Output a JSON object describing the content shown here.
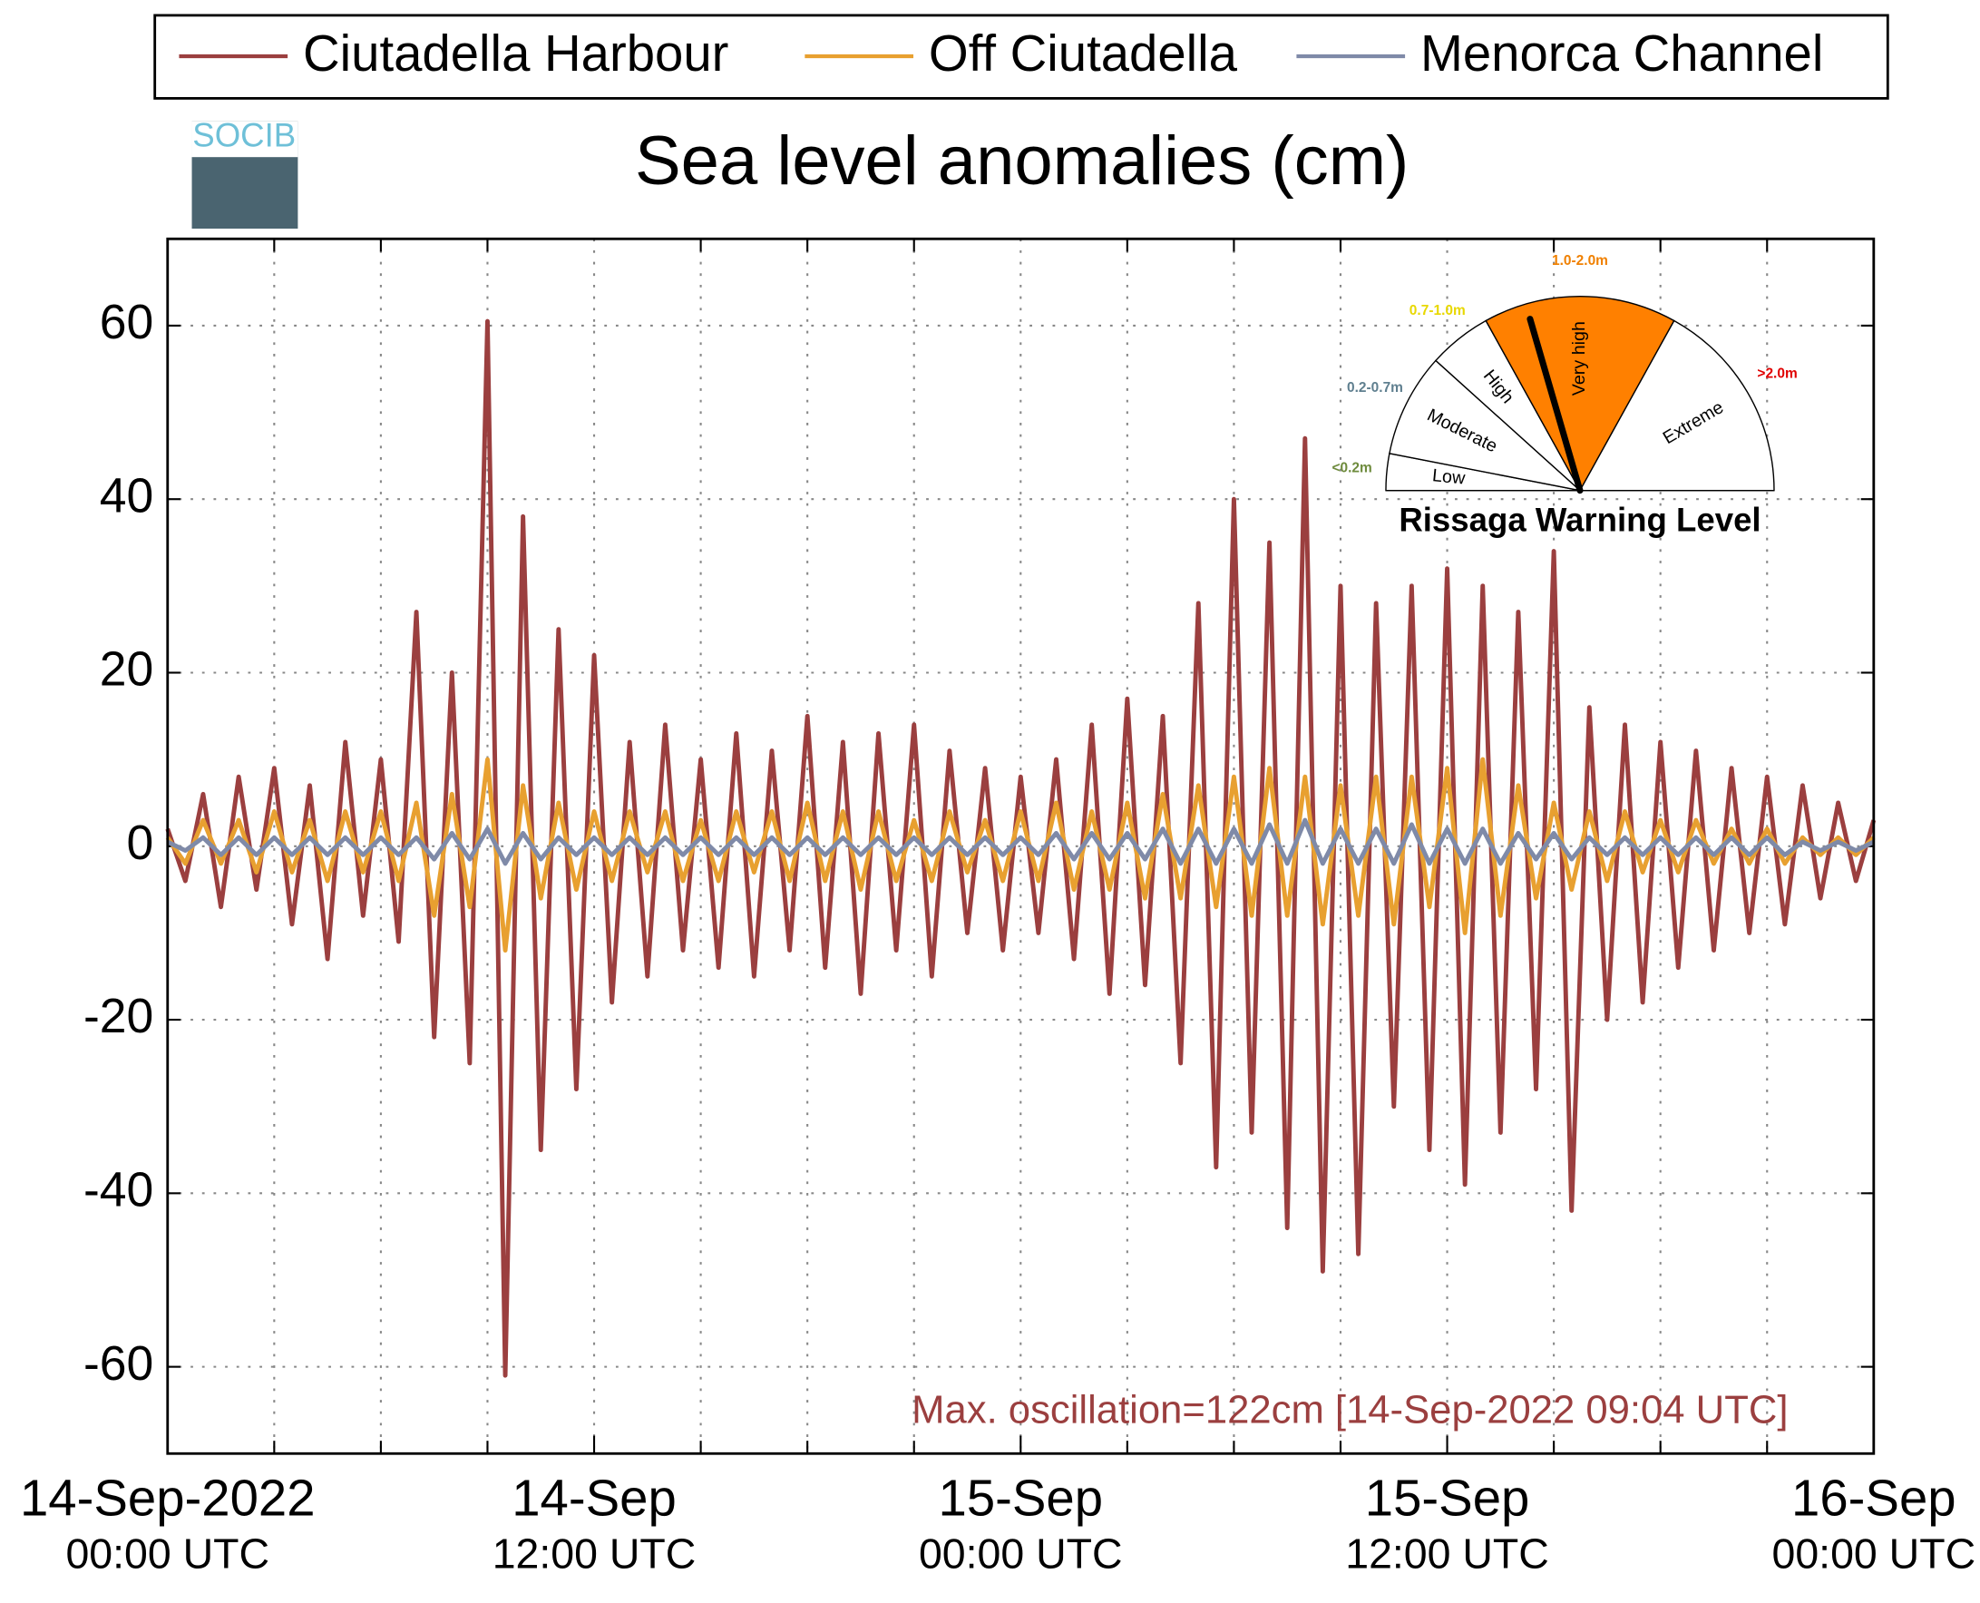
{
  "chart_data": {
    "type": "line",
    "title": "Sea level anomalies (cm)",
    "annotation": "Max. oscillation=122cm [14-Sep-2022 09:04 UTC]",
    "annotation_color": "#9b3f3f",
    "x": [
      0,
      0.5,
      1,
      1.5,
      2,
      2.5,
      3,
      3.5,
      4,
      4.5,
      5,
      5.5,
      6,
      6.5,
      7,
      7.5,
      8,
      8.5,
      9,
      9.5,
      10,
      10.5,
      11,
      11.5,
      12,
      12.5,
      13,
      13.5,
      14,
      14.5,
      15,
      15.5,
      16,
      16.5,
      17,
      17.5,
      18,
      18.5,
      19,
      19.5,
      20,
      20.5,
      21,
      21.5,
      22,
      22.5,
      23,
      23.5,
      24,
      24.5,
      25,
      25.5,
      26,
      26.5,
      27,
      27.5,
      28,
      28.5,
      29,
      29.5,
      30,
      30.5,
      31,
      31.5,
      32,
      32.5,
      33,
      33.5,
      34,
      34.5,
      35,
      35.5,
      36,
      36.5,
      37,
      37.5,
      38,
      38.5,
      39,
      39.5,
      40,
      40.5,
      41,
      41.5,
      42,
      42.5,
      43,
      43.5,
      44,
      44.5,
      45,
      45.5,
      46,
      46.5,
      47,
      47.5,
      48
    ],
    "series": [
      {
        "name": "Ciutadella Harbour",
        "color": "#9b3f3f",
        "values": [
          2,
          -4,
          6,
          -7,
          8,
          -5,
          9,
          -9,
          7,
          -13,
          12,
          -8,
          10,
          -11,
          27,
          -22,
          20,
          -25,
          60.5,
          -61,
          38,
          -35,
          25,
          -28,
          22,
          -18,
          12,
          -15,
          14,
          -12,
          10,
          -14,
          13,
          -15,
          11,
          -12,
          15,
          -14,
          12,
          -17,
          13,
          -12,
          14,
          -15,
          11,
          -10,
          9,
          -12,
          8,
          -10,
          10,
          -13,
          14,
          -17,
          17,
          -16,
          15,
          -25,
          28,
          -37,
          40,
          -33,
          35,
          -44,
          47,
          -49,
          30,
          -47,
          28,
          -30,
          30,
          -35,
          32,
          -39,
          30,
          -33,
          27,
          -28,
          34,
          -42,
          16,
          -20,
          14,
          -18,
          12,
          -14,
          11,
          -12,
          9,
          -10,
          8,
          -9,
          7,
          -6,
          5,
          -4,
          3
        ]
      },
      {
        "name": "Off Ciutadella",
        "color": "#e8a030",
        "values": [
          1,
          -2,
          3,
          -2,
          3,
          -3,
          4,
          -3,
          3,
          -4,
          4,
          -3,
          4,
          -4,
          5,
          -8,
          6,
          -7,
          10,
          -12,
          7,
          -6,
          5,
          -5,
          4,
          -4,
          4,
          -3,
          4,
          -4,
          3,
          -4,
          4,
          -3,
          4,
          -4,
          5,
          -4,
          4,
          -5,
          4,
          -4,
          3,
          -4,
          4,
          -3,
          3,
          -4,
          4,
          -4,
          5,
          -5,
          4,
          -5,
          5,
          -6,
          6,
          -6,
          7,
          -7,
          8,
          -8,
          9,
          -8,
          8,
          -9,
          7,
          -8,
          8,
          -9,
          8,
          -7,
          9,
          -10,
          10,
          -8,
          7,
          -6,
          5,
          -5,
          4,
          -4,
          4,
          -3,
          3,
          -3,
          3,
          -2,
          2,
          -2,
          2,
          -2,
          1,
          -1,
          1,
          -1,
          1
        ]
      },
      {
        "name": "Menorca Channel",
        "color": "#7f8aa8",
        "values": [
          0.5,
          -0.5,
          1,
          -1,
          1,
          -1,
          1,
          -1,
          1,
          -1,
          1,
          -1,
          1,
          -1,
          1,
          -1.5,
          1.5,
          -1.5,
          2,
          -2,
          1.5,
          -1.5,
          1,
          -1,
          1,
          -1,
          1,
          -1,
          1,
          -1,
          1,
          -1,
          1,
          -1,
          1,
          -1,
          1,
          -1,
          1,
          -1,
          1,
          -1,
          1,
          -1,
          1,
          -1,
          1,
          -1,
          1,
          -1,
          1.5,
          -1.5,
          1.5,
          -1.5,
          1.5,
          -1.5,
          2,
          -2,
          2,
          -2,
          2,
          -2,
          2.5,
          -2,
          3,
          -2,
          2,
          -2,
          2,
          -2,
          2.5,
          -2,
          2,
          -2,
          2,
          -2,
          1.5,
          -1.5,
          1.5,
          -1.5,
          1,
          -1,
          1,
          -1,
          1,
          -1,
          1,
          -1,
          1,
          -1,
          1,
          -1,
          0.5,
          -0.5,
          0.5,
          -0.5,
          0.5
        ]
      }
    ],
    "xlim": [
      0,
      48
    ],
    "xticks": [
      {
        "value": 0,
        "label": [
          "14-Sep-2022",
          "00:00 UTC"
        ]
      },
      {
        "value": 12,
        "label": [
          "14-Sep",
          "12:00 UTC"
        ]
      },
      {
        "value": 24,
        "label": [
          "15-Sep",
          "00:00 UTC"
        ]
      },
      {
        "value": 36,
        "label": [
          "15-Sep",
          "12:00 UTC"
        ]
      },
      {
        "value": 48,
        "label": [
          "16-Sep",
          "00:00 UTC"
        ]
      }
    ],
    "xminor_ticks": [
      3,
      6,
      9,
      15,
      18,
      21,
      27,
      30,
      33,
      39,
      42,
      45
    ],
    "ylim": [
      -70,
      70
    ],
    "yticks": [
      -60,
      -40,
      -20,
      0,
      20,
      40,
      60
    ],
    "grid": true,
    "legend": "top"
  },
  "logo": "SOCIB",
  "gauge": {
    "title": "Rissaga Warning Level",
    "levels": [
      {
        "name": "Low",
        "range": "<0.2m",
        "range_color": "#6e8b3d"
      },
      {
        "name": "Moderate",
        "range": "0.2-0.7m",
        "range_color": "#5f7f8f"
      },
      {
        "name": "High",
        "range": "0.7-1.0m",
        "range_color": "#e8d800"
      },
      {
        "name": "Very high",
        "range": "1.0-2.0m",
        "range_color": "#f08000"
      },
      {
        "name": "Extreme",
        "range": ">2.0m",
        "range_color": "#e00000"
      }
    ],
    "active_level": 3,
    "active_color": "#ff8000"
  }
}
